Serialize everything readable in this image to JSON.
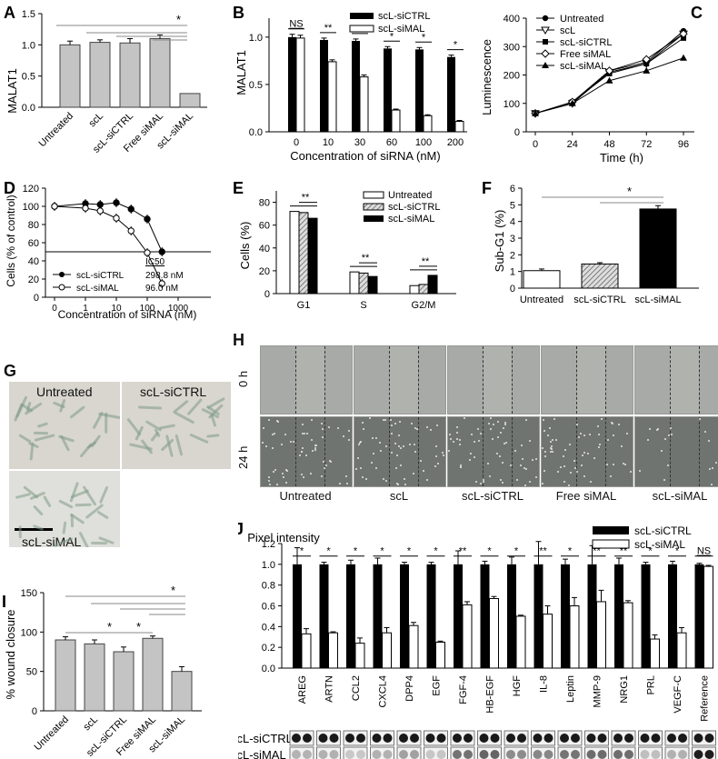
{
  "panels": {
    "A": {
      "letter": "A",
      "ylabel": "MALAT1",
      "yticks": [
        "0.0",
        "0.5",
        "1.0",
        "1.5"
      ],
      "categories": [
        "Untreated",
        "scL",
        "scL-siCTRL",
        "Free siMAL",
        "scL-siMAL"
      ],
      "sig": "*"
    },
    "B": {
      "letter": "B",
      "ylabel": "MALAT1",
      "xlabel": "Concentration of siRNA (nM)",
      "xticks": [
        "0",
        "10",
        "30",
        "60",
        "100",
        "200"
      ],
      "yticks": [
        "0.0",
        "0.5",
        "1.0"
      ],
      "legend": [
        "scL-siCTRL",
        "scL-siMAL"
      ],
      "sig": [
        "NS",
        "**",
        "*",
        "*",
        "*",
        "*"
      ]
    },
    "C": {
      "letter": "C",
      "ylabel": "Luminescence",
      "xlabel": "Time (h)",
      "xticks": [
        "0",
        "24",
        "48",
        "72",
        "96"
      ],
      "yticks": [
        "0",
        "100",
        "200",
        "300",
        "400"
      ],
      "legend": [
        "Untreated",
        "scL",
        "scL-siCTRL",
        "Free siMAL",
        "scL-siMAL"
      ]
    },
    "D": {
      "letter": "D",
      "ylabel": "Cells (% of control)",
      "xlabel": "Concentration of siRNA (nM)",
      "xticks": [
        "0",
        "1",
        "10",
        "100",
        "1000"
      ],
      "yticks": [
        "0",
        "20",
        "40",
        "60",
        "80",
        "100",
        "120"
      ],
      "ic50_header": "IC50",
      "legend": [
        "scL-siCTRL",
        "scL-siMAL"
      ],
      "ic50": [
        "298.8 nM",
        "96.0 nM"
      ]
    },
    "E": {
      "letter": "E",
      "ylabel": "Cells (%)",
      "xticks": [
        "G1",
        "S",
        "G2/M"
      ],
      "yticks": [
        "0",
        "20",
        "40",
        "60",
        "80"
      ],
      "legend": [
        "Untreated",
        "scL-siCTRL",
        "scL-siMAL"
      ],
      "sig": "**"
    },
    "F": {
      "letter": "F",
      "ylabel": "Sub-G1 (%)",
      "categories": [
        "Untreated",
        "scL-siCTRL",
        "scL-siMAL"
      ],
      "yticks": [
        "0",
        "1",
        "2",
        "3",
        "4",
        "5",
        "6"
      ],
      "sig": "*"
    },
    "G": {
      "letter": "G",
      "labels": [
        "Untreated",
        "scL-siCTRL",
        "scL-siMAL"
      ]
    },
    "H": {
      "letter": "H",
      "rows": [
        "0 h",
        "24 h"
      ],
      "cols": [
        "Untreated",
        "scL",
        "scL-siCTRL",
        "Free siMAL",
        "scL-siMAL"
      ]
    },
    "I": {
      "letter": "I",
      "ylabel": "% wound closure",
      "yticks": [
        "0",
        "50",
        "100",
        "150"
      ],
      "categories": [
        "Untreated",
        "scL",
        "scL-siCTRL",
        "Free siMAL",
        "scL-siMAL"
      ],
      "sig": "*"
    },
    "J": {
      "letter": "J",
      "ylabel": "Pixel intensity",
      "yticks": [
        "0.0",
        "0.2",
        "0.4",
        "0.6",
        "0.8",
        "1.0",
        "1.2"
      ],
      "legend": [
        "scL-siCTRL",
        "scL-siMAL"
      ],
      "categories": [
        "AREG",
        "ARTN",
        "CCL2",
        "CXCL4",
        "DPP4",
        "EGF",
        "FGF-4",
        "HB-EGF",
        "HGF",
        "IL-8",
        "Leptin",
        "MMP-9",
        "NRG1",
        "PRL",
        "VEGF-C",
        "Reference"
      ],
      "sig": [
        "*",
        "*",
        "*",
        "*",
        "*",
        "*",
        "**",
        "*",
        "*",
        "**",
        "*",
        "**",
        "**",
        "*",
        "*",
        "NS"
      ],
      "blot_rows": [
        "scL-siCTRL",
        "scL-siMAL"
      ]
    }
  },
  "colors": {
    "gray_bar": "#c4c4c4",
    "black": "#000000",
    "white": "#ffffff",
    "hatch": "#bfbfbf"
  },
  "chart_data": [
    {
      "panel": "A",
      "type": "bar",
      "categories": [
        "Untreated",
        "scL",
        "scL-siCTRL",
        "Free siMAL",
        "scL-siMAL"
      ],
      "values": [
        1.0,
        1.04,
        1.03,
        1.1,
        0.22
      ],
      "errors": [
        0.06,
        0.04,
        0.07,
        0.06,
        0
      ],
      "ylim": [
        0,
        1.5
      ],
      "ylabel": "MALAT1"
    },
    {
      "panel": "B",
      "type": "bar",
      "categories": [
        "0",
        "10",
        "30",
        "60",
        "100",
        "200"
      ],
      "series": [
        {
          "name": "scL-siCTRL",
          "values": [
            1.0,
            0.97,
            0.96,
            0.88,
            0.87,
            0.79
          ],
          "errors": [
            0.03,
            0.02,
            0.02,
            0.02,
            0.02,
            0.02
          ]
        },
        {
          "name": "scL-siMAL",
          "values": [
            0.99,
            0.74,
            0.58,
            0.23,
            0.17,
            0.11
          ],
          "errors": [
            0.03,
            0.02,
            0.02,
            0.01,
            0.01,
            0.01
          ]
        }
      ],
      "ylim": [
        0,
        1.2
      ],
      "xlabel": "Concentration of siRNA (nM)",
      "ylabel": "MALAT1"
    },
    {
      "panel": "C",
      "type": "line",
      "x": [
        0,
        24,
        48,
        72,
        96
      ],
      "series": [
        {
          "name": "Untreated",
          "values": [
            65,
            100,
            215,
            245,
            355
          ]
        },
        {
          "name": "scL",
          "values": [
            65,
            100,
            210,
            240,
            345
          ]
        },
        {
          "name": "scL-siCTRL",
          "values": [
            65,
            105,
            205,
            240,
            330
          ]
        },
        {
          "name": "Free siMAL",
          "values": [
            65,
            105,
            215,
            255,
            345
          ]
        },
        {
          "name": "scL-siMAL",
          "values": [
            65,
            100,
            180,
            215,
            260
          ]
        }
      ],
      "ylim": [
        0,
        400
      ],
      "xlabel": "Time (h)",
      "ylabel": "Luminescence"
    },
    {
      "panel": "D",
      "type": "line",
      "x": [
        0,
        1,
        3,
        10,
        30,
        100,
        300
      ],
      "series": [
        {
          "name": "scL-siCTRL",
          "values": [
            100,
            103,
            102,
            104,
            97,
            86,
            50
          ]
        },
        {
          "name": "scL-siMAL",
          "values": [
            100,
            98,
            95,
            87,
            73,
            49,
            15
          ]
        }
      ],
      "ylim": [
        0,
        120
      ],
      "xlabel": "Concentration of siRNA (nM)",
      "ylabel": "Cells (% of control)",
      "reference_line": 50
    },
    {
      "panel": "E",
      "type": "bar",
      "categories": [
        "G1",
        "S",
        "G2/M"
      ],
      "series": [
        {
          "name": "Untreated",
          "values": [
            72,
            19,
            7
          ]
        },
        {
          "name": "scL-siCTRL",
          "values": [
            71,
            18,
            8
          ]
        },
        {
          "name": "scL-siMAL",
          "values": [
            66,
            15,
            16
          ]
        }
      ],
      "ylim": [
        0,
        90
      ],
      "ylabel": "Cells (%)"
    },
    {
      "panel": "F",
      "type": "bar",
      "categories": [
        "Untreated",
        "scL-siCTRL",
        "scL-siMAL"
      ],
      "values": [
        1.05,
        1.45,
        4.75
      ],
      "errors": [
        0.1,
        0.08,
        0.2
      ],
      "ylim": [
        0,
        6
      ],
      "ylabel": "Sub-G1 (%)"
    },
    {
      "panel": "I",
      "type": "bar",
      "categories": [
        "Untreated",
        "scL",
        "scL-siCTRL",
        "Free siMAL",
        "scL-siMAL"
      ],
      "values": [
        90,
        85,
        75,
        92,
        50
      ],
      "errors": [
        4,
        5,
        6,
        3,
        6
      ],
      "ylim": [
        0,
        150
      ],
      "ylabel": "% wound closure"
    },
    {
      "panel": "J",
      "type": "bar",
      "categories": [
        "AREG",
        "ARTN",
        "CCL2",
        "CXCL4",
        "DPP4",
        "EGF",
        "FGF-4",
        "HB-EGF",
        "HGF",
        "IL-8",
        "Leptin",
        "MMP-9",
        "NRG1",
        "PRL",
        "VEGF-C",
        "Reference"
      ],
      "series": [
        {
          "name": "scL-siCTRL",
          "values": [
            1,
            1,
            1,
            1,
            1,
            1,
            1,
            1,
            1,
            1,
            1,
            1,
            1,
            1,
            1,
            1
          ],
          "errors": [
            0.16,
            0.02,
            0.04,
            0.06,
            0.02,
            0.02,
            0.13,
            0.03,
            0.07,
            0.22,
            0.05,
            0.18,
            0.06,
            0.02,
            0.03,
            0.01
          ]
        },
        {
          "name": "scL-siMAL",
          "values": [
            0.33,
            0.34,
            0.24,
            0.34,
            0.41,
            0.25,
            0.61,
            0.67,
            0.5,
            0.52,
            0.6,
            0.64,
            0.63,
            0.28,
            0.34,
            0.98
          ],
          "errors": [
            0.05,
            0.01,
            0.05,
            0.05,
            0.03,
            0.01,
            0.03,
            0.02,
            0.01,
            0.08,
            0.08,
            0.11,
            0.02,
            0.04,
            0.05,
            0.01
          ]
        }
      ],
      "ylim": [
        0,
        1.2
      ],
      "ylabel": "Pixel intensity"
    }
  ]
}
